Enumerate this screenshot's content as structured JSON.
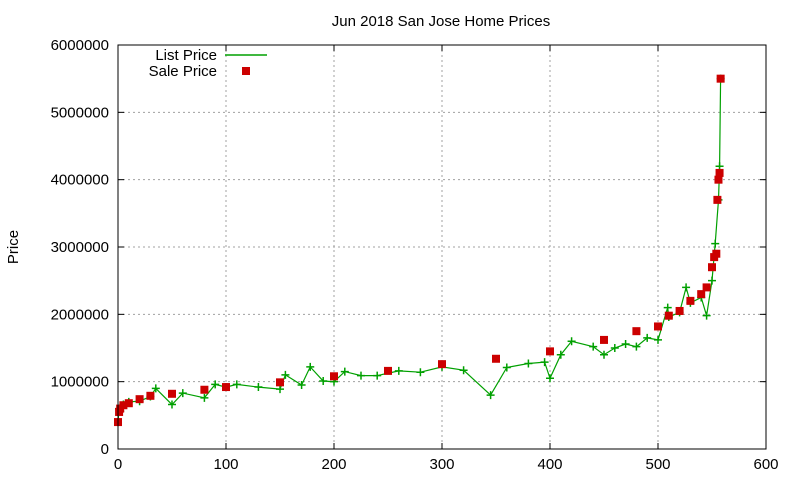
{
  "chart_data": {
    "type": "scatter",
    "title": "Jun 2018 San Jose Home Prices",
    "xlabel": "",
    "ylabel": "Price",
    "xlim": [
      0,
      600
    ],
    "ylim": [
      0,
      6000000
    ],
    "x_ticks": [
      0,
      100,
      200,
      300,
      400,
      500,
      600
    ],
    "y_ticks": [
      0,
      1000000,
      2000000,
      3000000,
      4000000,
      5000000,
      6000000
    ],
    "x_tick_labels": [
      "0",
      "100",
      "200",
      "300",
      "400",
      "500",
      "600"
    ],
    "y_tick_labels": [
      "0",
      "1000000",
      "2000000",
      "3000000",
      "4000000",
      "5000000",
      "6000000"
    ],
    "grid": true,
    "legend_position": "top-left",
    "series": [
      {
        "name": "List Price",
        "style": "line+cross",
        "color": "#00a000",
        "x": [
          0,
          1,
          2,
          5,
          10,
          20,
          30,
          35,
          50,
          60,
          80,
          90,
          100,
          110,
          130,
          150,
          155,
          170,
          178,
          190,
          200,
          210,
          225,
          240,
          260,
          280,
          300,
          320,
          345,
          360,
          380,
          395,
          400,
          410,
          420,
          440,
          450,
          460,
          470,
          480,
          490,
          500,
          509,
          510,
          520,
          526,
          530,
          540,
          545,
          550,
          553,
          556,
          557,
          558
        ],
        "values": [
          400000,
          600000,
          560000,
          660000,
          700000,
          710000,
          780000,
          900000,
          660000,
          830000,
          760000,
          960000,
          920000,
          960000,
          920000,
          890000,
          1100000,
          950000,
          1220000,
          1010000,
          1000000,
          1150000,
          1090000,
          1090000,
          1160000,
          1140000,
          1220000,
          1170000,
          800000,
          1210000,
          1270000,
          1290000,
          1050000,
          1400000,
          1600000,
          1520000,
          1400000,
          1500000,
          1560000,
          1520000,
          1650000,
          1620000,
          2100000,
          1960000,
          2030000,
          2400000,
          2170000,
          2250000,
          1980000,
          2500000,
          3050000,
          3700000,
          4200000,
          5500000
        ]
      },
      {
        "name": "Sale Price",
        "style": "square",
        "color": "#cc0000",
        "x": [
          0,
          1,
          2,
          5,
          10,
          20,
          30,
          50,
          80,
          100,
          150,
          200,
          250,
          300,
          350,
          400,
          450,
          480,
          500,
          510,
          520,
          530,
          540,
          545,
          550,
          552,
          554,
          555,
          556,
          557,
          558
        ],
        "values": [
          400000,
          550000,
          600000,
          650000,
          680000,
          740000,
          790000,
          820000,
          880000,
          920000,
          990000,
          1080000,
          1160000,
          1260000,
          1340000,
          1450000,
          1620000,
          1750000,
          1820000,
          1980000,
          2050000,
          2200000,
          2300000,
          2400000,
          2700000,
          2850000,
          2900000,
          3700000,
          4000000,
          4100000,
          5500000
        ]
      }
    ]
  }
}
